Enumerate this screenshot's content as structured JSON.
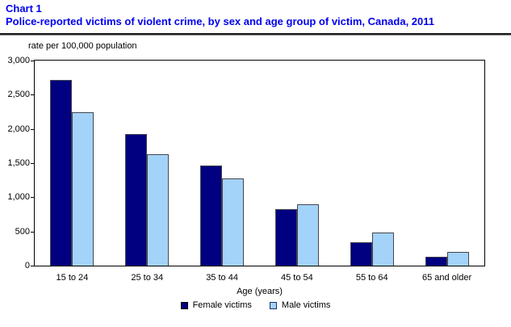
{
  "header": {
    "chart_label": "Chart 1",
    "title": "Police-reported victims of violent crime, by sex and age group of victim, Canada, 2011"
  },
  "colors": {
    "title_blue": "#0000ee",
    "female_bar": "#000080",
    "male_bar": "#a3d3f8",
    "axis": "#000000"
  },
  "chart_data": {
    "type": "bar",
    "title": "Police-reported victims of violent crime, by sex and age group of victim, Canada, 2011",
    "ylabel": "rate per 100,000 population",
    "xlabel": "Age (years)",
    "categories": [
      "15 to 24",
      "25 to 34",
      "35 to 44",
      "45 to 54",
      "55 to 64",
      "65 and older"
    ],
    "series": [
      {
        "name": "Female victims",
        "color": "#000080",
        "swatch_border": "#000000",
        "values": [
          2720,
          1920,
          1470,
          830,
          340,
          135
        ]
      },
      {
        "name": "Male victims",
        "color": "#a3d3f8",
        "swatch_border": "#1c2f6b",
        "values": [
          2250,
          1630,
          1275,
          900,
          480,
          205
        ]
      }
    ],
    "ylim": [
      0,
      3000
    ],
    "yticks": [
      "0",
      "500",
      "1,000",
      "1,500",
      "2,000",
      "2,500",
      "3,000"
    ],
    "grid": false,
    "legend_position": "bottom"
  }
}
